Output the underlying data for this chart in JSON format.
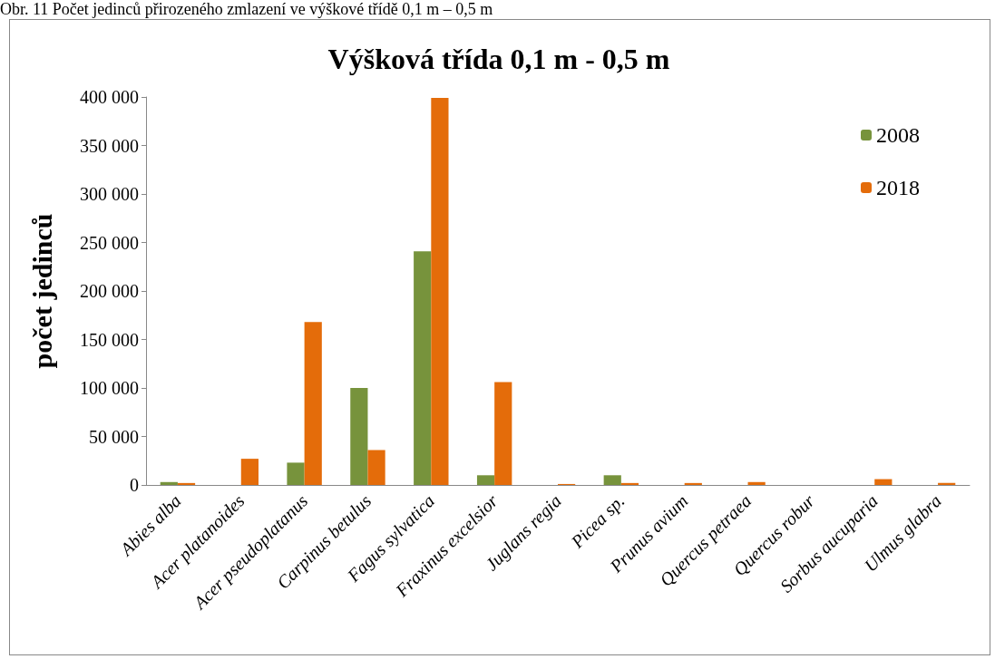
{
  "chart_data": {
    "type": "bar",
    "title": "Výšková třída 0,1 m - 0,5 m",
    "ylabel": "počet jedinců",
    "annotations": [
      "Obr. 11 Počet jedinců přirozeného zmlazení ve výškové třídě 0,1 m – 0,5 m"
    ],
    "categories": [
      "Abies alba",
      "Acer platanoides",
      "Acer pseudoplatanus",
      "Carpinus betulus",
      "Fagus sylvatica",
      "Fraxinus excelsior",
      "Juglans regia",
      "Picea sp.",
      "Prunus avium",
      "Quercus petraea",
      "Quercus robur",
      "Sorbus aucuparia",
      "Ulmus glabra"
    ],
    "series": [
      {
        "name": "2008",
        "color": "#77933c",
        "values": [
          3000,
          0,
          23000,
          100000,
          241000,
          10000,
          0,
          10000,
          0,
          0,
          0,
          0,
          0
        ]
      },
      {
        "name": "2018",
        "color": "#e46c0a",
        "values": [
          2000,
          27000,
          168000,
          36000,
          399000,
          106000,
          1000,
          2000,
          2000,
          3000,
          0,
          6000,
          2000
        ]
      }
    ],
    "ylim": [
      0,
      400000
    ],
    "yticks": [
      0,
      {
        "value": 50000,
        "label": "50 000"
      },
      {
        "value": 100000,
        "label": "100 000"
      },
      {
        "value": 150000,
        "label": "150 000"
      },
      {
        "value": 200000,
        "label": "200 000"
      },
      {
        "value": 250000,
        "label": "250 000"
      },
      {
        "value": 300000,
        "label": "300 000"
      },
      {
        "value": 350000,
        "label": "350 000"
      },
      {
        "value": 400000,
        "label": "400 000"
      }
    ],
    "grid": false,
    "legend": "top right"
  }
}
